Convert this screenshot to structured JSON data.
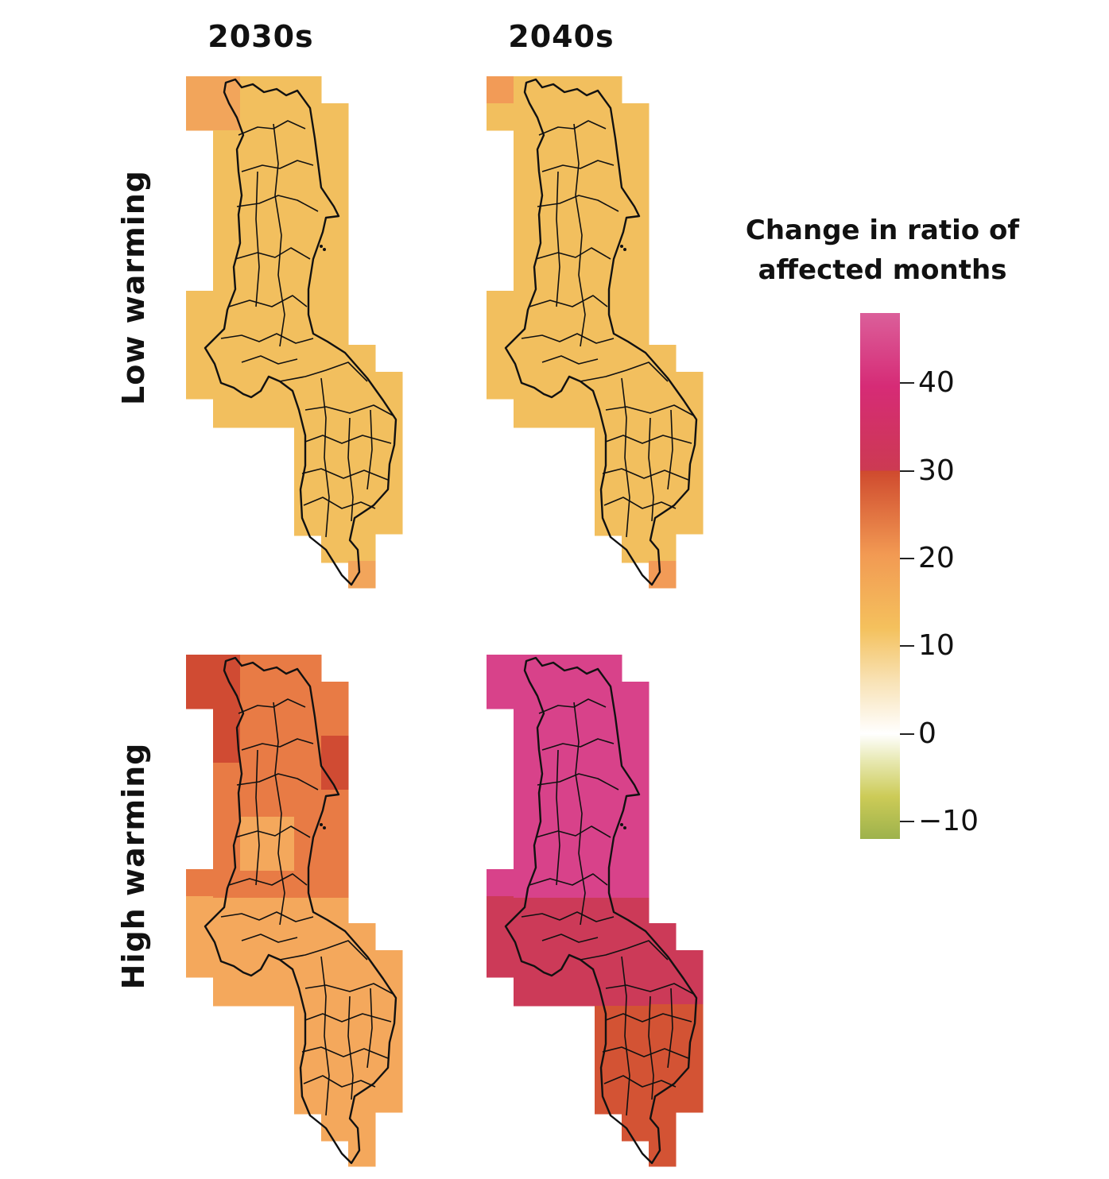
{
  "columns": [
    "2030s",
    "2040s"
  ],
  "rows": [
    "Low warming",
    "High warming"
  ],
  "legend": {
    "title_line1": "Change in ratio of",
    "title_line2": "affected months",
    "ticks": [
      "40",
      "30",
      "20",
      "10",
      "0",
      "−10"
    ],
    "tick_values": [
      40,
      30,
      20,
      10,
      0,
      -10
    ],
    "range": [
      -12,
      48
    ]
  },
  "colors": {
    "low_2030s_main": "#f2bf5e",
    "low_2030s_hot": "#f2a55b",
    "low_2040s_main": "#f2bf5e",
    "low_2040s_hot": "#f29b57",
    "high_2030s_main": "#e87b45",
    "high_2030s_cool": "#f4a85c",
    "high_2030s_hot": "#d04b33",
    "high_2040s_north": "#d8428a",
    "high_2040s_mid": "#cc3a58",
    "high_2040s_south": "#d35334",
    "border": "#111111"
  }
}
